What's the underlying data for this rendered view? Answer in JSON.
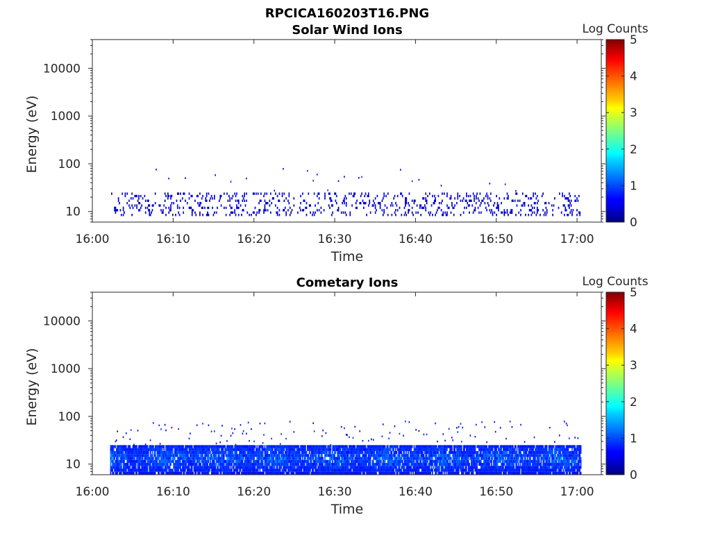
{
  "figure": {
    "title": "RPCICA160203T16.PNG"
  },
  "chart_data": [
    {
      "type": "heatmap",
      "title": "Solar Wind Ions",
      "xlabel": "Time",
      "ylabel": "Energy (eV)",
      "x_ticks": [
        "16:00",
        "16:10",
        "16:20",
        "16:30",
        "16:40",
        "16:50",
        "17:00"
      ],
      "x_tick_minutes": [
        0,
        10,
        20,
        30,
        40,
        50,
        60
      ],
      "xlim_minutes": [
        0,
        63
      ],
      "y_scale": "log",
      "ylim": [
        6,
        40000
      ],
      "y_ticks": [
        10,
        100,
        1000,
        10000
      ],
      "y_tick_labels": [
        "10",
        "100",
        "1000",
        "10000"
      ],
      "data_time_range_minutes": [
        2.2,
        60.5
      ],
      "colorbar": {
        "label": "Log Counts",
        "range": [
          0,
          5
        ],
        "ticks": [
          0,
          1,
          2,
          3,
          4,
          5
        ],
        "colormap": "jet"
      },
      "description_values": {
        "main_band_energy_ev": [
          8,
          25
        ],
        "main_band_log_counts": [
          0.1,
          0.7
        ],
        "sparse_max_energy_ev": 80
      }
    },
    {
      "type": "heatmap",
      "title": "Cometary Ions",
      "xlabel": "Time",
      "ylabel": "Energy (eV)",
      "x_ticks": [
        "16:00",
        "16:10",
        "16:20",
        "16:30",
        "16:40",
        "16:50",
        "17:00"
      ],
      "x_tick_minutes": [
        0,
        10,
        20,
        30,
        40,
        50,
        60
      ],
      "xlim_minutes": [
        0,
        63
      ],
      "y_scale": "log",
      "ylim": [
        6,
        40000
      ],
      "y_ticks": [
        10,
        100,
        1000,
        10000
      ],
      "y_tick_labels": [
        "10",
        "100",
        "1000",
        "10000"
      ],
      "data_time_range_minutes": [
        2.2,
        60.5
      ],
      "colorbar": {
        "label": "Log Counts",
        "range": [
          0,
          5
        ],
        "ticks": [
          0,
          1,
          2,
          3,
          4,
          5
        ],
        "colormap": "jet"
      },
      "description_values": {
        "main_band_energy_ev": [
          6,
          25
        ],
        "main_band_log_counts": [
          0.3,
          1.8
        ],
        "sparse_max_energy_ev": 80
      }
    }
  ]
}
